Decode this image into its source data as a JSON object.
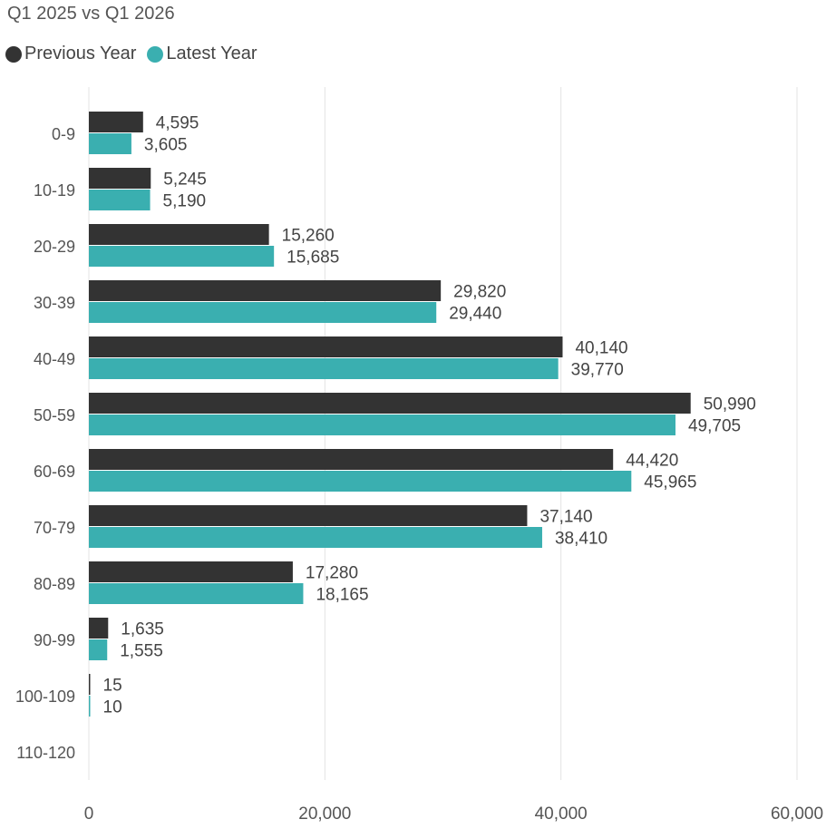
{
  "chart_data": {
    "type": "bar",
    "orientation": "horizontal",
    "title": "Q1 2025 vs Q1 2026",
    "categories": [
      "0-9",
      "10-19",
      "20-29",
      "30-39",
      "40-49",
      "50-59",
      "60-69",
      "70-79",
      "80-89",
      "90-99",
      "100-109",
      "110-120"
    ],
    "series": [
      {
        "name": "Previous Year",
        "color": "#333333",
        "values": [
          4595,
          5245,
          15260,
          29820,
          40140,
          50990,
          44420,
          37140,
          17280,
          1635,
          15,
          0
        ],
        "labels": [
          "4,595",
          "5,245",
          "15,260",
          "29,820",
          "40,140",
          "50,990",
          "44,420",
          "37,140",
          "17,280",
          "1,635",
          "15",
          ""
        ]
      },
      {
        "name": "Latest Year",
        "color": "#3AAFB0",
        "values": [
          3605,
          5190,
          15685,
          29440,
          39770,
          49705,
          45965,
          38410,
          18165,
          1555,
          10,
          0
        ],
        "labels": [
          "3,605",
          "5,190",
          "15,685",
          "29,440",
          "39,770",
          "49,705",
          "45,965",
          "38,410",
          "18,165",
          "1,555",
          "10",
          ""
        ]
      }
    ],
    "xlim": [
      0,
      60000
    ],
    "x_ticks": [
      0,
      20000,
      40000,
      60000
    ],
    "x_tick_labels": [
      "0",
      "20,000",
      "40,000",
      "60,000"
    ],
    "xlabel": "",
    "ylabel": "",
    "grid": "vertical",
    "legend_position": "top-left"
  }
}
